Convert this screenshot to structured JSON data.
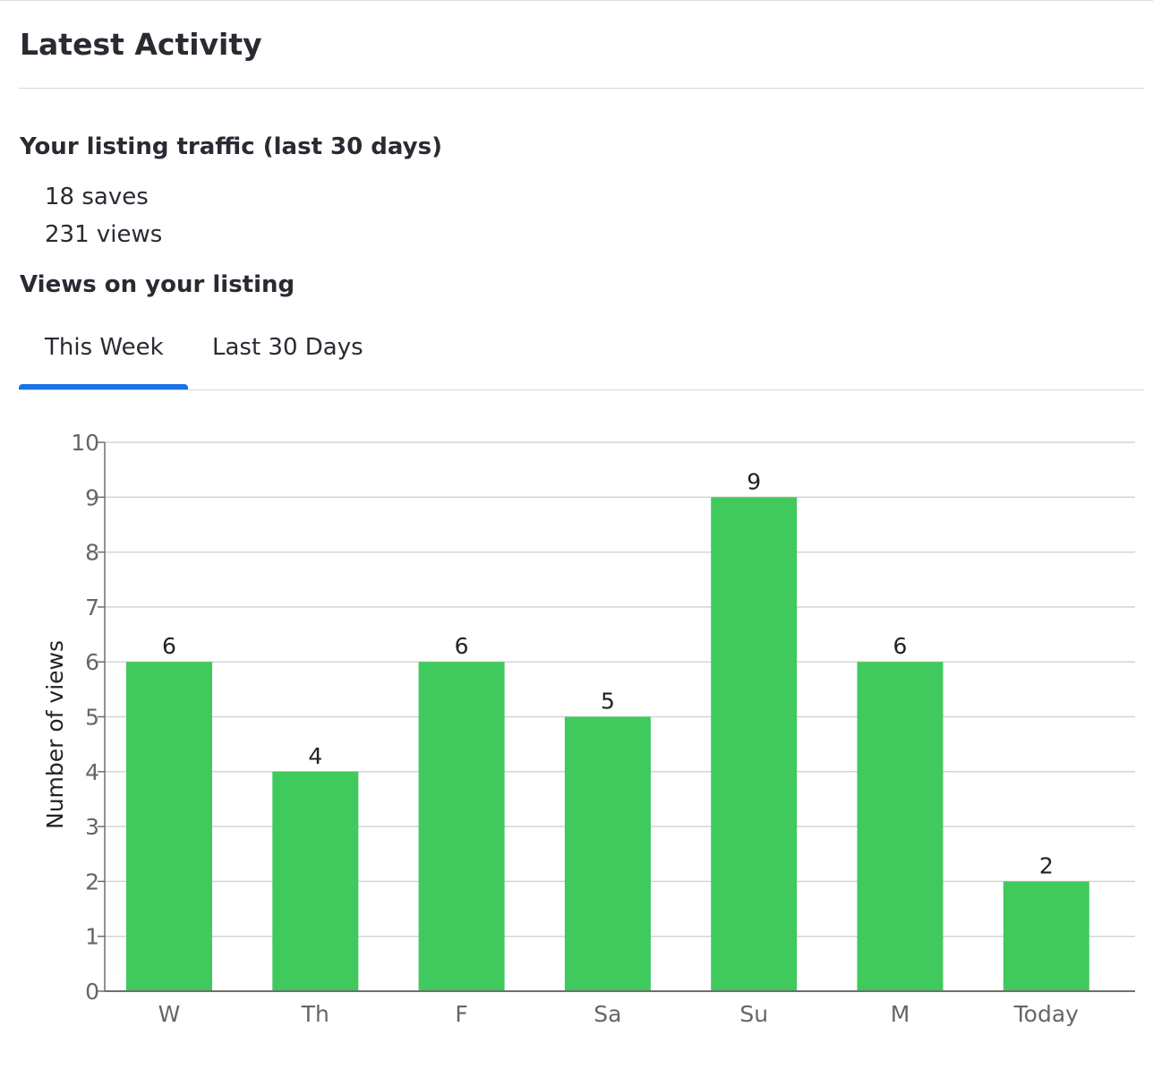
{
  "section": {
    "title": "Latest Activity"
  },
  "traffic": {
    "heading": "Your listing traffic (last 30 days)",
    "saves": "18 saves",
    "views": "231 views"
  },
  "views_heading": "Views on your listing",
  "tabs": [
    {
      "label": "This Week",
      "active": true
    },
    {
      "label": "Last 30 Days",
      "active": false
    }
  ],
  "colors": {
    "bar": "#40c95c",
    "tab_active": "#1a73e8",
    "grid": "#d4d4d4",
    "axis": "#6e6e6e",
    "tick_text": "#666666",
    "label_text": "#222222"
  },
  "chart_data": {
    "type": "bar",
    "categories": [
      "W",
      "Th",
      "F",
      "Sa",
      "Su",
      "M",
      "Today"
    ],
    "values": [
      6,
      4,
      6,
      5,
      9,
      6,
      2
    ],
    "title": "",
    "xlabel": "",
    "ylabel": "Number of views",
    "ylim": [
      0,
      10
    ],
    "yticks": [
      0,
      1,
      2,
      3,
      4,
      5,
      6,
      7,
      8,
      9,
      10
    ],
    "grid": true,
    "data_labels": true
  }
}
